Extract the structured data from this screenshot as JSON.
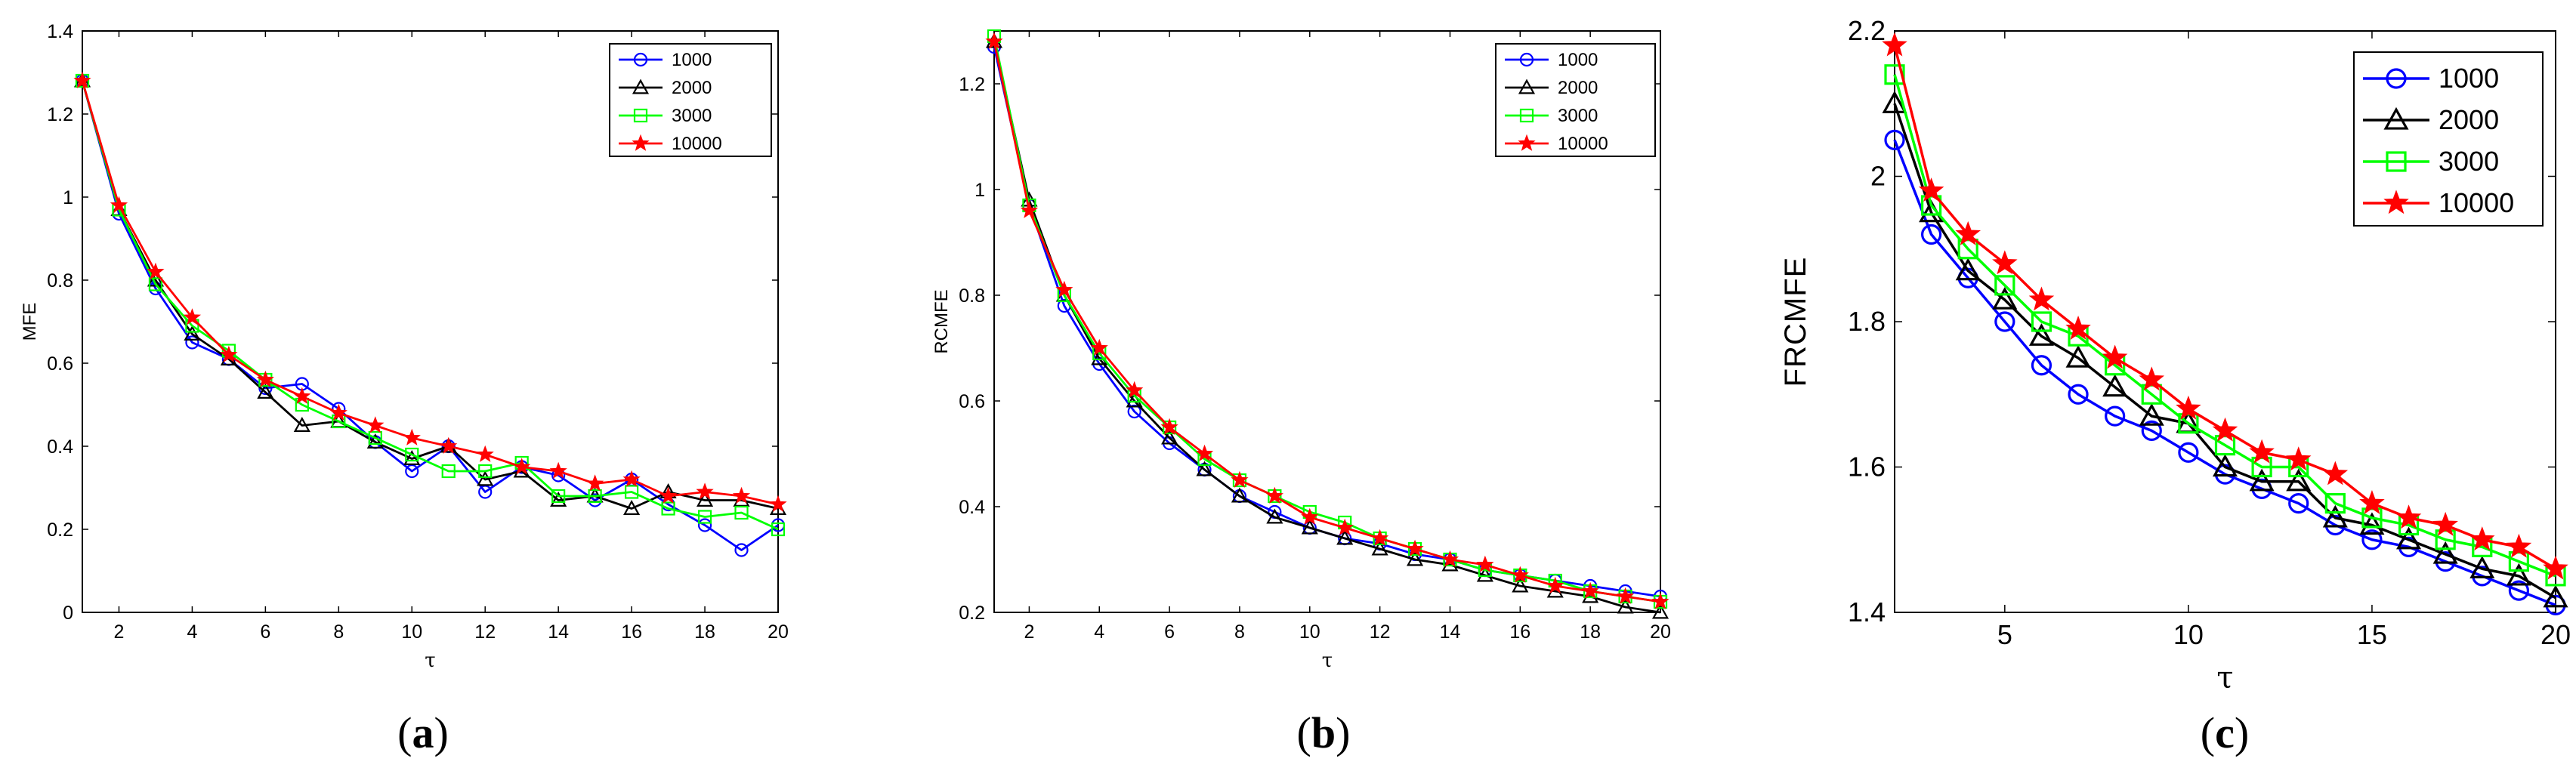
{
  "chart_data": [
    {
      "type": "line",
      "panel": "a",
      "caption_letter": "a",
      "ylabel": "MFE",
      "xlabel": "τ",
      "xlim": [
        1,
        20
      ],
      "ylim": [
        0,
        1.4
      ],
      "xticks": [
        2,
        4,
        6,
        8,
        10,
        12,
        14,
        16,
        18,
        20
      ],
      "yticks": [
        0,
        0.2,
        0.4,
        0.6,
        0.8,
        1,
        1.2,
        1.4
      ],
      "ytick_labels": [
        "0",
        "0.2",
        "0.4",
        "0.6",
        "0.8",
        "1",
        "1.2",
        "1.4"
      ],
      "x": [
        1,
        2,
        3,
        4,
        5,
        6,
        7,
        8,
        9,
        10,
        11,
        12,
        13,
        14,
        15,
        16,
        17,
        18,
        19,
        20
      ],
      "series": [
        {
          "name": "1000",
          "color": "#0000ff",
          "marker": "circle",
          "values": [
            1.28,
            0.96,
            0.78,
            0.65,
            0.61,
            0.54,
            0.55,
            0.49,
            0.41,
            0.34,
            0.4,
            0.29,
            0.35,
            0.33,
            0.27,
            0.32,
            0.26,
            0.21,
            0.15,
            0.21
          ]
        },
        {
          "name": "2000",
          "color": "#000000",
          "marker": "triangle",
          "values": [
            1.28,
            0.97,
            0.8,
            0.67,
            0.61,
            0.53,
            0.45,
            0.46,
            0.41,
            0.37,
            0.4,
            0.32,
            0.34,
            0.27,
            0.28,
            0.25,
            0.29,
            0.27,
            0.27,
            0.25
          ]
        },
        {
          "name": "3000",
          "color": "#00ff00",
          "marker": "square",
          "values": [
            1.28,
            0.97,
            0.79,
            0.69,
            0.63,
            0.56,
            0.5,
            0.46,
            0.42,
            0.38,
            0.34,
            0.34,
            0.36,
            0.28,
            0.28,
            0.29,
            0.25,
            0.23,
            0.24,
            0.2
          ]
        },
        {
          "name": "10000",
          "color": "#ff0000",
          "marker": "star",
          "values": [
            1.28,
            0.98,
            0.82,
            0.71,
            0.62,
            0.56,
            0.52,
            0.48,
            0.45,
            0.42,
            0.4,
            0.38,
            0.35,
            0.34,
            0.31,
            0.32,
            0.28,
            0.29,
            0.28,
            0.26
          ]
        }
      ],
      "legend": "top-right"
    },
    {
      "type": "line",
      "panel": "b",
      "caption_letter": "b",
      "ylabel": "RCMFE",
      "xlabel": "τ",
      "xlim": [
        1,
        20
      ],
      "ylim": [
        0.2,
        1.3
      ],
      "xticks": [
        2,
        4,
        6,
        8,
        10,
        12,
        14,
        16,
        18,
        20
      ],
      "yticks": [
        0.2,
        0.4,
        0.6,
        0.8,
        1,
        1.2
      ],
      "ytick_labels": [
        "0.2",
        "0.4",
        "0.6",
        "0.8",
        "1",
        "1.2"
      ],
      "x": [
        1,
        2,
        3,
        4,
        5,
        6,
        7,
        8,
        9,
        10,
        11,
        12,
        13,
        14,
        15,
        16,
        17,
        18,
        19,
        20
      ],
      "series": [
        {
          "name": "1000",
          "color": "#0000ff",
          "marker": "circle",
          "values": [
            1.27,
            0.97,
            0.78,
            0.67,
            0.58,
            0.52,
            0.47,
            0.42,
            0.39,
            0.36,
            0.34,
            0.33,
            0.31,
            0.3,
            0.28,
            0.27,
            0.26,
            0.25,
            0.24,
            0.23
          ]
        },
        {
          "name": "2000",
          "color": "#000000",
          "marker": "triangle",
          "values": [
            1.28,
            0.98,
            0.8,
            0.68,
            0.6,
            0.53,
            0.47,
            0.42,
            0.38,
            0.36,
            0.34,
            0.32,
            0.3,
            0.29,
            0.27,
            0.25,
            0.24,
            0.23,
            0.21,
            0.2
          ]
        },
        {
          "name": "3000",
          "color": "#00ff00",
          "marker": "square",
          "values": [
            1.29,
            0.97,
            0.8,
            0.69,
            0.61,
            0.55,
            0.49,
            0.45,
            0.42,
            0.39,
            0.37,
            0.34,
            0.32,
            0.3,
            0.28,
            0.27,
            0.26,
            0.24,
            0.23,
            0.22
          ]
        },
        {
          "name": "10000",
          "color": "#ff0000",
          "marker": "star",
          "values": [
            1.28,
            0.96,
            0.81,
            0.7,
            0.62,
            0.55,
            0.5,
            0.45,
            0.42,
            0.38,
            0.36,
            0.34,
            0.32,
            0.3,
            0.29,
            0.27,
            0.25,
            0.24,
            0.23,
            0.22
          ]
        }
      ],
      "legend": "top-right"
    },
    {
      "type": "line",
      "panel": "c",
      "caption_letter": "c",
      "ylabel": "FRCMFE",
      "xlabel": "τ",
      "xlim": [
        2,
        20
      ],
      "ylim": [
        1.4,
        2.2
      ],
      "xticks": [
        5,
        10,
        15,
        20
      ],
      "yticks": [
        1.4,
        1.6,
        1.8,
        2,
        2.2
      ],
      "ytick_labels": [
        "1.4",
        "1.6",
        "1.8",
        "2",
        "2.2"
      ],
      "x": [
        2,
        3,
        4,
        5,
        6,
        7,
        8,
        9,
        10,
        11,
        12,
        13,
        14,
        15,
        16,
        17,
        18,
        19,
        20
      ],
      "series": [
        {
          "name": "1000",
          "color": "#0000ff",
          "marker": "circle",
          "values": [
            2.05,
            1.92,
            1.86,
            1.8,
            1.74,
            1.7,
            1.67,
            1.65,
            1.62,
            1.59,
            1.57,
            1.55,
            1.52,
            1.5,
            1.49,
            1.47,
            1.45,
            1.43,
            1.41
          ]
        },
        {
          "name": "2000",
          "color": "#000000",
          "marker": "triangle",
          "values": [
            2.1,
            1.95,
            1.87,
            1.83,
            1.78,
            1.75,
            1.71,
            1.67,
            1.66,
            1.6,
            1.58,
            1.58,
            1.53,
            1.52,
            1.5,
            1.48,
            1.46,
            1.45,
            1.42
          ]
        },
        {
          "name": "3000",
          "color": "#00ff00",
          "marker": "square",
          "values": [
            2.14,
            1.96,
            1.9,
            1.85,
            1.8,
            1.78,
            1.74,
            1.7,
            1.66,
            1.63,
            1.6,
            1.6,
            1.55,
            1.53,
            1.52,
            1.5,
            1.49,
            1.47,
            1.45
          ]
        },
        {
          "name": "10000",
          "color": "#ff0000",
          "marker": "star",
          "values": [
            2.18,
            1.98,
            1.92,
            1.88,
            1.83,
            1.79,
            1.75,
            1.72,
            1.68,
            1.65,
            1.62,
            1.61,
            1.59,
            1.55,
            1.53,
            1.52,
            1.5,
            1.49,
            1.46
          ]
        }
      ],
      "legend": "top-right"
    }
  ]
}
